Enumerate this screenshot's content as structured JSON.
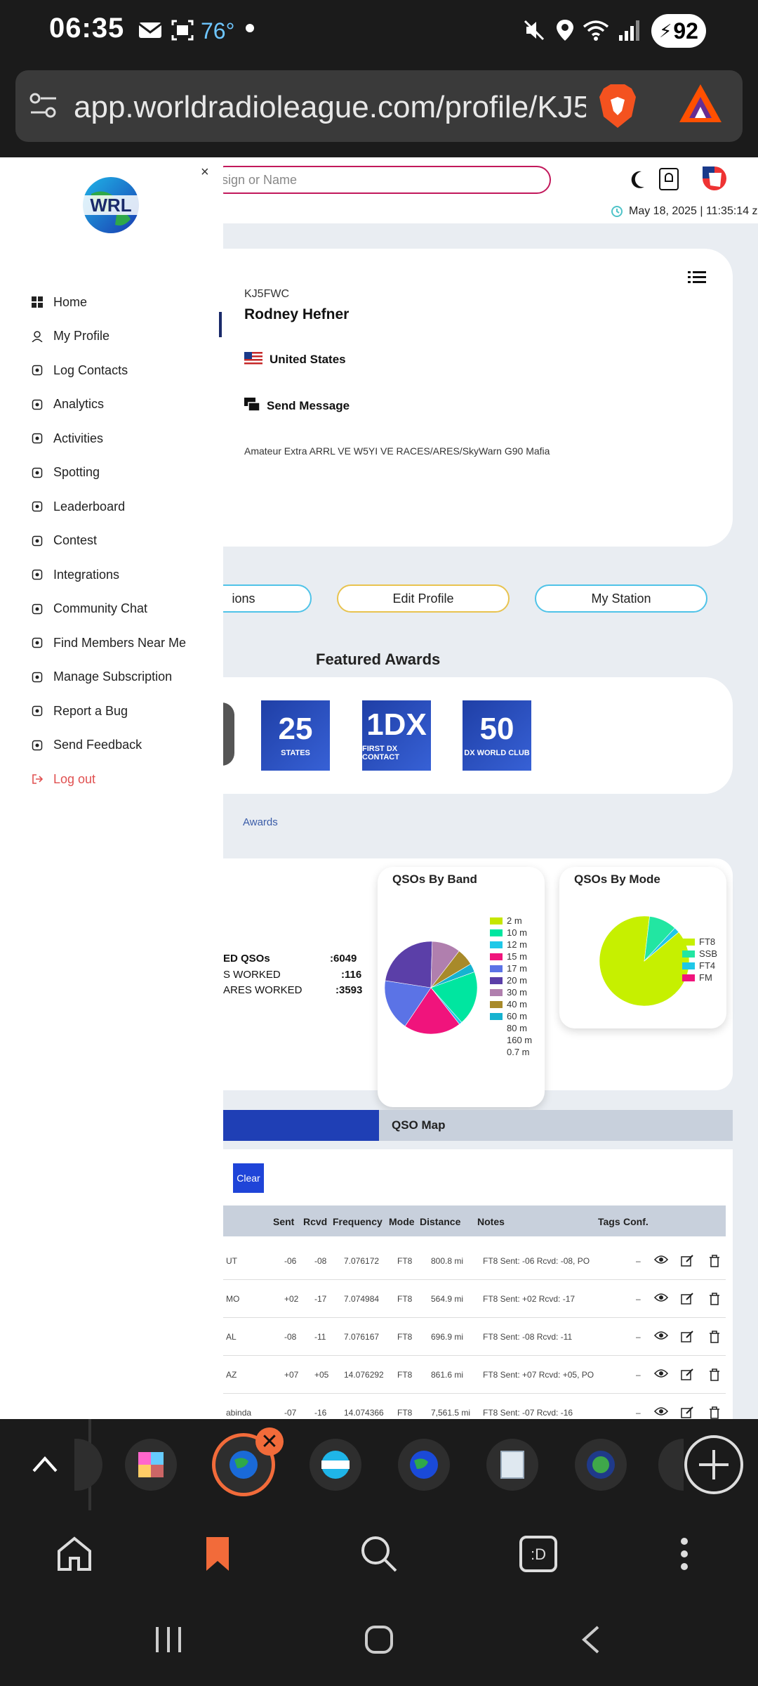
{
  "status_bar": {
    "time": "06:35",
    "temperature": "76°",
    "battery": "92",
    "icons": [
      "mail-icon",
      "screenshot-icon",
      "mute-icon",
      "location-icon",
      "wifi-icon",
      "signal-icon"
    ]
  },
  "browser": {
    "url": "app.worldradioleague.com/profile/KJ5",
    "brave_icon": "brave-lion-icon",
    "rewards_icon": "bat-triangle-icon"
  },
  "header": {
    "search_placeholder": "sign or Name",
    "datetime": "May 18, 2025 | 11:35:14 z"
  },
  "sidebar": {
    "logo": "WRL",
    "items": [
      {
        "label": "Home",
        "icon": "grid-icon"
      },
      {
        "label": "My Profile",
        "icon": "user-icon"
      },
      {
        "label": "Log Contacts",
        "icon": "contact-card-icon"
      },
      {
        "label": "Analytics",
        "icon": "chart-icon"
      },
      {
        "label": "Activities",
        "icon": "hiker-icon"
      },
      {
        "label": "Spotting",
        "icon": "antenna-icon"
      },
      {
        "label": "Leaderboard",
        "icon": "board-icon"
      },
      {
        "label": "Contest",
        "icon": "trophy-icon"
      },
      {
        "label": "Integrations",
        "icon": "integration-icon"
      },
      {
        "label": "Community Chat",
        "icon": "chat-icon"
      },
      {
        "label": "Find Members Near Me",
        "icon": "folder-icon"
      },
      {
        "label": "Manage Subscription",
        "icon": "people-icon"
      },
      {
        "label": "Report a Bug",
        "icon": "bug-icon"
      },
      {
        "label": "Send Feedback",
        "icon": "info-icon"
      },
      {
        "label": "Log out",
        "icon": "logout-icon"
      }
    ]
  },
  "profile": {
    "callsign": "KJ5FWC",
    "name": "Rodney Hefner",
    "country": "United States",
    "send_message": "Send Message",
    "bio": "Amateur Extra ARRL VE W5YI VE RACES/ARES/SkyWarn G90 Mafia"
  },
  "buttons": {
    "left_partial": "ions",
    "edit_profile": "Edit Profile",
    "my_station": "My Station"
  },
  "awards": {
    "title": "Featured Awards",
    "link": "Awards",
    "items": [
      {
        "big": "25",
        "small": "STATES"
      },
      {
        "big": "1DX",
        "small": "FIRST DX CONTACT"
      },
      {
        "big": "50",
        "small": "DX WORLD CLUB"
      }
    ]
  },
  "stats": [
    {
      "label": "ED QSOs",
      "value": ":6049"
    },
    {
      "label": "S WORKED",
      "value": ":116"
    },
    {
      "label": "ARES WORKED",
      "value": ":3593"
    }
  ],
  "chart_data": [
    {
      "type": "pie",
      "title": "QSOs By Band",
      "categories": [
        "2 m",
        "10 m",
        "12 m",
        "15 m",
        "17 m",
        "20 m",
        "30 m",
        "40 m",
        "60 m",
        "80 m",
        "160 m",
        "0.7 m"
      ],
      "values": [
        0,
        19,
        1,
        20,
        18,
        23,
        10,
        6,
        3,
        0,
        0,
        0
      ],
      "colors": [
        "#c6e600",
        "#00e6a0",
        "#1fc8e8",
        "#f0147c",
        "#5b73e6",
        "#5b3fa8",
        "#b07fae",
        "#a88a2a",
        "#16b3d0",
        "#ffffff",
        "#ffffff",
        "#ffffff"
      ]
    },
    {
      "type": "pie",
      "title": "QSOs By Mode",
      "categories": [
        "FT8",
        "SSB",
        "FT4",
        "FM"
      ],
      "values": [
        88,
        10,
        2,
        0
      ],
      "colors": [
        "#c6f000",
        "#22e6a2",
        "#1fc8e8",
        "#f0147c"
      ]
    }
  ],
  "tabs": {
    "map": "QSO Map"
  },
  "table": {
    "clear_button": "Clear",
    "headers": [
      "Sent",
      "Rcvd",
      "Frequency",
      "Mode",
      "Distance",
      "Notes",
      "Tags",
      "Conf."
    ],
    "rows": [
      {
        "loc": "UT",
        "sent": "-06",
        "rcvd": "-08",
        "freq": "7.076172",
        "mode": "FT8",
        "dist": "800.8 mi",
        "notes": "FT8 Sent: -06 Rcvd: -08, PO",
        "tags": "–"
      },
      {
        "loc": "MO",
        "sent": "+02",
        "rcvd": "-17",
        "freq": "7.074984",
        "mode": "FT8",
        "dist": "564.9 mi",
        "notes": "FT8 Sent: +02 Rcvd: -17",
        "tags": "–"
      },
      {
        "loc": "AL",
        "sent": "-08",
        "rcvd": "-11",
        "freq": "7.076167",
        "mode": "FT8",
        "dist": "696.9 mi",
        "notes": "FT8 Sent: -08 Rcvd: -11",
        "tags": "–"
      },
      {
        "loc": "AZ",
        "sent": "+07",
        "rcvd": "+05",
        "freq": "14.076292",
        "mode": "FT8",
        "dist": "861.6 mi",
        "notes": "FT8 Sent: +07 Rcvd: +05, PO",
        "tags": "–"
      },
      {
        "loc": "abinda",
        "sent": "-07",
        "rcvd": "-16",
        "freq": "14.074366",
        "mode": "FT8",
        "dist": "7,561.5 mi",
        "notes": "FT8 Sent: -07 Rcvd: -16",
        "tags": "–"
      }
    ]
  },
  "bottom_toolbar": {
    "icons": [
      "home-icon",
      "bookmark-icon",
      "search-icon",
      "wallet-icon",
      "more-icon"
    ]
  },
  "android_nav": {
    "icons": [
      "recents-icon",
      "home-circle-icon",
      "back-icon"
    ]
  }
}
